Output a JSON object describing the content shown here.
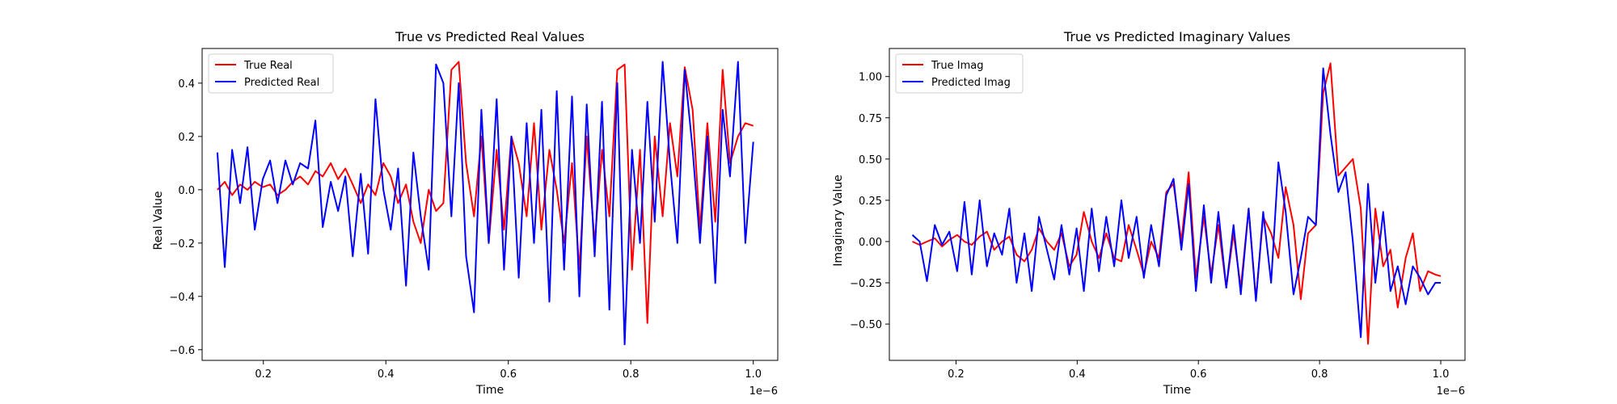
{
  "chart_data": [
    {
      "type": "line",
      "title": "True vs Predicted Real Values",
      "xlabel": "Time",
      "ylabel": "Real Value",
      "x_offset_text": "1e−6",
      "xlim": [
        0.1,
        1.04
      ],
      "ylim": [
        -0.64,
        0.53
      ],
      "xticks": [
        0.2,
        0.4,
        0.6,
        0.8,
        1.0
      ],
      "xtick_labels": [
        "0.2",
        "0.4",
        "0.6",
        "0.8",
        "1.0"
      ],
      "yticks": [
        -0.6,
        -0.4,
        -0.2,
        0.0,
        0.2,
        0.4
      ],
      "ytick_labels": [
        "−0.6",
        "−0.4",
        "−0.2",
        "0.0",
        "0.2",
        "0.4"
      ],
      "grid": false,
      "legend": "top-left",
      "x": [
        0.125,
        0.137,
        0.149,
        0.162,
        0.174,
        0.186,
        0.199,
        0.211,
        0.223,
        0.236,
        0.248,
        0.26,
        0.273,
        0.285,
        0.297,
        0.31,
        0.322,
        0.334,
        0.346,
        0.359,
        0.371,
        0.383,
        0.396,
        0.408,
        0.42,
        0.433,
        0.445,
        0.457,
        0.47,
        0.482,
        0.494,
        0.507,
        0.519,
        0.531,
        0.544,
        0.556,
        0.568,
        0.581,
        0.593,
        0.605,
        0.617,
        0.63,
        0.642,
        0.654,
        0.667,
        0.679,
        0.691,
        0.704,
        0.716,
        0.728,
        0.741,
        0.753,
        0.765,
        0.778,
        0.79,
        0.802,
        0.815,
        0.827,
        0.839,
        0.852,
        0.864,
        0.876,
        0.888,
        0.901,
        0.913,
        0.925,
        0.938,
        0.95,
        0.962,
        0.975,
        0.987,
        1.0
      ],
      "series": [
        {
          "name": "True Real",
          "color": "#ff0000",
          "values": [
            0.0,
            0.03,
            -0.02,
            0.02,
            0.0,
            0.03,
            0.01,
            0.02,
            -0.02,
            0.0,
            0.03,
            0.05,
            0.02,
            0.07,
            0.05,
            0.1,
            0.04,
            0.08,
            0.02,
            -0.05,
            0.02,
            -0.02,
            0.1,
            0.05,
            -0.05,
            0.02,
            -0.12,
            -0.2,
            0.0,
            -0.08,
            -0.05,
            0.45,
            0.48,
            0.1,
            -0.1,
            0.2,
            -0.2,
            0.15,
            -0.15,
            0.2,
            0.1,
            -0.1,
            0.25,
            -0.15,
            0.15,
            0.0,
            -0.2,
            0.1,
            -0.3,
            0.2,
            -0.2,
            0.15,
            -0.1,
            0.45,
            0.47,
            -0.3,
            0.15,
            -0.5,
            0.2,
            -0.1,
            0.25,
            0.05,
            0.46,
            0.3,
            -0.15,
            0.25,
            -0.12,
            0.45,
            0.1,
            0.2,
            0.25,
            0.24
          ]
        },
        {
          "name": "Predicted Real",
          "color": "#0000ff",
          "values": [
            0.14,
            -0.29,
            0.15,
            -0.05,
            0.16,
            -0.15,
            0.04,
            0.11,
            -0.05,
            0.11,
            0.02,
            0.1,
            0.08,
            0.26,
            -0.14,
            0.03,
            -0.08,
            0.05,
            -0.25,
            0.06,
            -0.24,
            0.34,
            0.0,
            -0.15,
            0.08,
            -0.36,
            0.14,
            -0.1,
            -0.3,
            0.47,
            0.4,
            -0.1,
            0.4,
            -0.25,
            -0.46,
            0.3,
            -0.2,
            0.34,
            -0.3,
            0.2,
            -0.33,
            0.25,
            -0.2,
            0.3,
            -0.42,
            0.37,
            -0.3,
            0.35,
            -0.4,
            0.32,
            -0.25,
            0.33,
            -0.45,
            0.4,
            -0.58,
            0.15,
            -0.2,
            0.33,
            -0.12,
            0.48,
            0.1,
            -0.2,
            0.45,
            0.15,
            -0.2,
            0.2,
            -0.35,
            0.3,
            0.05,
            0.48,
            -0.2,
            0.18
          ]
        }
      ]
    },
    {
      "type": "line",
      "title": "True vs Predicted Imaginary Values",
      "xlabel": "Time",
      "ylabel": "Imaginary Value",
      "x_offset_text": "1e−6",
      "xlim": [
        0.09,
        1.04
      ],
      "ylim": [
        -0.72,
        1.17
      ],
      "xticks": [
        0.2,
        0.4,
        0.6,
        0.8,
        1.0
      ],
      "xtick_labels": [
        "0.2",
        "0.4",
        "0.6",
        "0.8",
        "1.0"
      ],
      "yticks": [
        -0.5,
        -0.25,
        0.0,
        0.25,
        0.5,
        0.75,
        1.0
      ],
      "ytick_labels": [
        "−0.50",
        "−0.25",
        "0.00",
        "0.25",
        "0.50",
        "0.75",
        "1.00"
      ],
      "grid": false,
      "legend": "top-left",
      "x": [
        0.128,
        0.14,
        0.152,
        0.165,
        0.177,
        0.189,
        0.202,
        0.214,
        0.226,
        0.239,
        0.251,
        0.263,
        0.276,
        0.288,
        0.3,
        0.313,
        0.325,
        0.337,
        0.35,
        0.362,
        0.374,
        0.387,
        0.399,
        0.411,
        0.424,
        0.436,
        0.448,
        0.461,
        0.473,
        0.485,
        0.498,
        0.51,
        0.522,
        0.535,
        0.547,
        0.559,
        0.572,
        0.584,
        0.596,
        0.609,
        0.621,
        0.633,
        0.646,
        0.658,
        0.67,
        0.683,
        0.695,
        0.707,
        0.72,
        0.732,
        0.744,
        0.757,
        0.769,
        0.781,
        0.794,
        0.806,
        0.818,
        0.831,
        0.843,
        0.855,
        0.868,
        0.88,
        0.892,
        0.905,
        0.917,
        0.929,
        0.942,
        0.954,
        0.966,
        0.979,
        0.991,
        1.0
      ],
      "series": [
        {
          "name": "True Imag",
          "color": "#ff0000",
          "values": [
            0.0,
            -0.02,
            0.0,
            0.02,
            -0.03,
            0.01,
            0.04,
            0.0,
            -0.02,
            0.03,
            0.06,
            -0.05,
            0.0,
            0.03,
            -0.08,
            -0.12,
            -0.05,
            0.08,
            0.0,
            -0.05,
            0.05,
            -0.15,
            -0.08,
            0.18,
            0.0,
            -0.1,
            0.05,
            -0.1,
            -0.12,
            0.1,
            -0.05,
            -0.2,
            0.0,
            -0.1,
            0.3,
            0.35,
            0.0,
            0.42,
            -0.22,
            0.15,
            -0.2,
            0.1,
            -0.28,
            0.05,
            -0.28,
            0.2,
            -0.35,
            0.15,
            0.05,
            -0.1,
            0.33,
            0.1,
            -0.35,
            0.05,
            0.1,
            0.9,
            1.08,
            0.4,
            0.45,
            0.5,
            0.2,
            -0.62,
            0.2,
            -0.15,
            -0.05,
            -0.4,
            -0.1,
            0.05,
            -0.3,
            -0.18,
            -0.2,
            -0.21
          ]
        },
        {
          "name": "Predicted Imag",
          "color": "#0000ff",
          "values": [
            0.04,
            0.0,
            -0.24,
            0.1,
            -0.02,
            0.06,
            -0.18,
            0.24,
            -0.2,
            0.25,
            -0.15,
            0.05,
            -0.08,
            0.2,
            -0.25,
            0.05,
            -0.3,
            0.15,
            -0.05,
            -0.23,
            0.1,
            -0.2,
            0.08,
            -0.3,
            0.2,
            -0.18,
            0.15,
            -0.15,
            0.25,
            -0.1,
            0.15,
            -0.22,
            0.1,
            -0.15,
            0.28,
            0.38,
            -0.05,
            0.35,
            -0.3,
            0.22,
            -0.25,
            0.18,
            -0.28,
            0.1,
            -0.32,
            0.2,
            -0.36,
            0.18,
            -0.25,
            0.48,
            0.18,
            -0.32,
            -0.1,
            0.15,
            0.1,
            1.05,
            0.65,
            0.3,
            0.42,
            0.0,
            -0.58,
            0.35,
            -0.25,
            0.18,
            -0.3,
            -0.15,
            -0.38,
            -0.15,
            -0.22,
            -0.32,
            -0.25,
            -0.25
          ]
        }
      ]
    }
  ]
}
